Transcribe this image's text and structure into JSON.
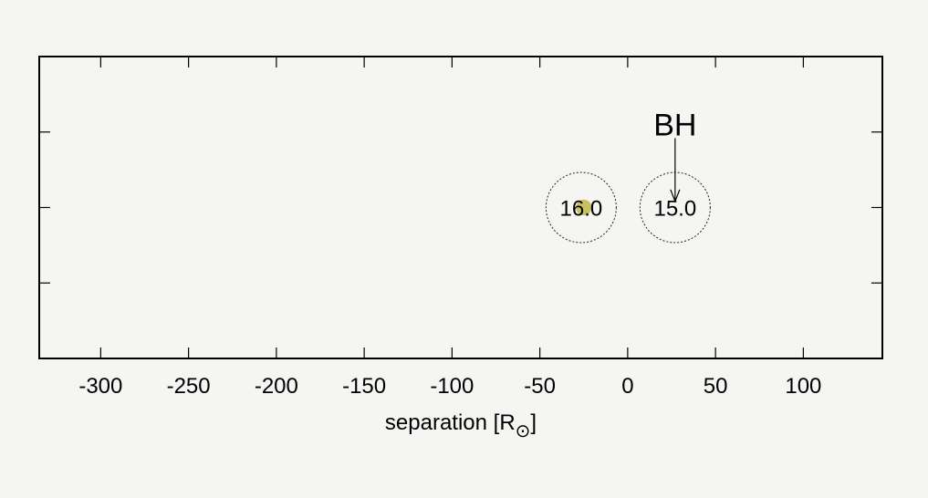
{
  "chart_data": {
    "type": "scatter",
    "xlabel": "separation [R",
    "xlabel_unit_symbol": "⊙",
    "xlabel_close": "]",
    "ylabel": "",
    "xlim": [
      -335,
      145
    ],
    "ylim": [
      -1,
      1
    ],
    "x_ticks": [
      -300,
      -250,
      -200,
      -150,
      -100,
      -50,
      0,
      50,
      100
    ],
    "x_tick_labels": [
      "-300",
      "-250",
      "-200",
      "-150",
      "-100",
      "-50",
      "0",
      "50",
      "100"
    ],
    "y_ticks": [
      -0.5,
      0,
      0.5
    ],
    "grid": false,
    "bodies": [
      {
        "label": "16.0",
        "x": -26.5,
        "y": 0,
        "roche_radius": 20,
        "star_radius": 4.5,
        "star_x": -25,
        "star_color": "#bdb84a"
      },
      {
        "label": "15.0",
        "x": 27,
        "y": 0,
        "roche_radius": 20
      }
    ],
    "annotations": [
      {
        "text": "BH",
        "x": 27,
        "y": 0.55,
        "arrow_to_y": 0.04
      }
    ],
    "colors": {
      "background": "#f5f5f3",
      "frame": "#000000",
      "roche": "#000000"
    }
  }
}
